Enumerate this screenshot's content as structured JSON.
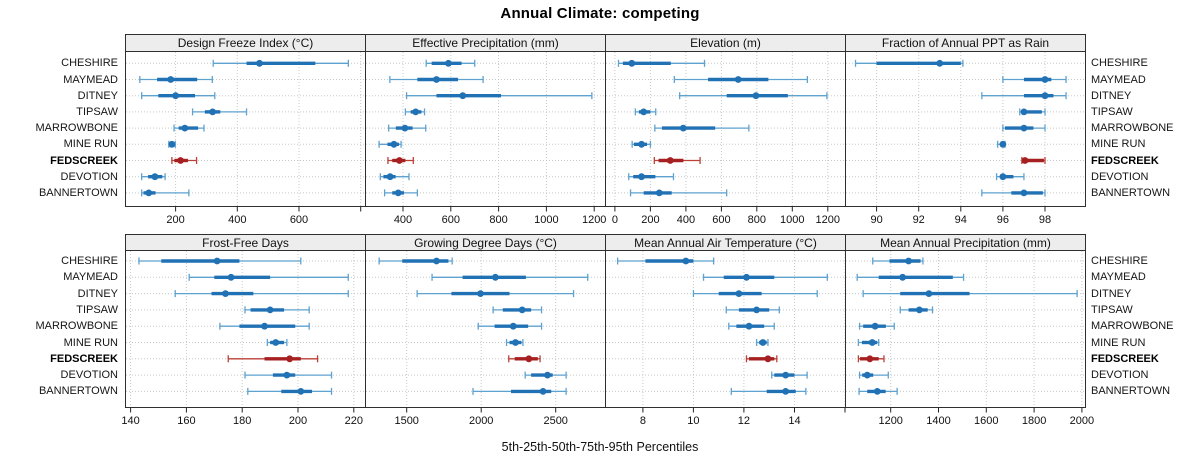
{
  "chart_data": {
    "type": "dotplot-percentiles",
    "title": "Annual Climate: competing",
    "caption": "5th-25th-50th-75th-95th Percentiles",
    "percentile_labels": [
      "5th",
      "25th",
      "50th",
      "75th",
      "95th"
    ],
    "legend_position": "none",
    "grid": "dotted",
    "sites": [
      "CHESHIRE",
      "MAYMEAD",
      "DITNEY",
      "TIPSAW",
      "MARROWBONE",
      "MINE RUN",
      "FEDSCREEK",
      "DEVOTION",
      "BANNERTOWN"
    ],
    "highlight_site": "FEDSCREEK",
    "colors": {
      "main": "#2171B5",
      "whisker": "#5EA2D0",
      "highlight_main": "#A62021",
      "highlight_whisker": "#BB4137",
      "grid": "#C8C8C8",
      "border": "#2F2F2F",
      "header_bg": "#EDEDED",
      "tick": "#222222"
    },
    "panels": [
      {
        "title": "Design Freeze Index (°C)",
        "row": 0,
        "col": 0,
        "xlim": [
          36,
          814
        ],
        "ticks": [
          200,
          400,
          600
        ],
        "unlabeled_ticks": [
          800
        ],
        "series": {
          "CHESHIRE": [
            322,
            430,
            472,
            653,
            760
          ],
          "MAYMEAD": [
            84,
            140,
            184,
            270,
            319
          ],
          "DITNEY": [
            90,
            144,
            200,
            263,
            327
          ],
          "TIPSAW": [
            255,
            295,
            320,
            345,
            430
          ],
          "MARROWBONE": [
            195,
            210,
            230,
            273,
            292
          ],
          "MINE RUN": [
            178,
            183,
            188,
            194,
            199
          ],
          "FEDSCREEK": [
            188,
            196,
            216,
            240,
            268
          ],
          "DEVOTION": [
            90,
            111,
            133,
            157,
            166
          ],
          "BANNERTOWN": [
            90,
            96,
            113,
            135,
            243
          ]
        }
      },
      {
        "title": "Effective Precipitation (mm)",
        "row": 0,
        "col": 1,
        "xlim": [
          241,
          1245
        ],
        "ticks": [
          400,
          600,
          800,
          1000,
          1200
        ],
        "unlabeled_ticks": [],
        "series": {
          "CHESHIRE": [
            497,
            520,
            590,
            645,
            700
          ],
          "MAYMEAD": [
            345,
            460,
            540,
            630,
            735
          ],
          "DITNEY": [
            415,
            540,
            650,
            810,
            1190
          ],
          "TIPSAW": [
            410,
            432,
            453,
            477,
            490
          ],
          "MARROWBONE": [
            340,
            370,
            408,
            440,
            495
          ],
          "MINE RUN": [
            300,
            335,
            362,
            383,
            392
          ],
          "FEDSCREEK": [
            337,
            355,
            385,
            410,
            443
          ],
          "DEVOTION": [
            305,
            318,
            346,
            369,
            425
          ],
          "BANNERTOWN": [
            323,
            355,
            380,
            404,
            460
          ]
        }
      },
      {
        "title": "Elevation (m)",
        "row": 0,
        "col": 2,
        "xlim": [
          -56,
          1297
        ],
        "ticks": [
          0,
          200,
          400,
          600,
          800,
          1000,
          1200
        ],
        "unlabeled_ticks": [],
        "series": {
          "CHESHIRE": [
            20,
            45,
            95,
            315,
            505
          ],
          "MAYMEAD": [
            335,
            525,
            695,
            865,
            1085
          ],
          "DITNEY": [
            365,
            630,
            795,
            975,
            1195
          ],
          "TIPSAW": [
            115,
            135,
            162,
            200,
            230
          ],
          "MARROWBONE": [
            225,
            265,
            385,
            565,
            755
          ],
          "MINE RUN": [
            97,
            107,
            150,
            181,
            200
          ],
          "FEDSCREEK": [
            222,
            246,
            312,
            386,
            480
          ],
          "DEVOTION": [
            78,
            103,
            150,
            228,
            330
          ],
          "BANNERTOWN": [
            88,
            162,
            250,
            320,
            630
          ]
        }
      },
      {
        "title": "Fraction of Annual PPT as Rain",
        "row": 0,
        "col": 3,
        "xlim": [
          88.5,
          99.9
        ],
        "ticks": [
          90,
          92,
          94,
          96,
          98
        ],
        "unlabeled_ticks": [],
        "series": {
          "CHESHIRE": [
            89,
            90,
            93,
            94,
            94.1
          ],
          "MAYMEAD": [
            96,
            97,
            98,
            98.3,
            99
          ],
          "DITNEY": [
            95,
            97,
            98,
            98.4,
            99
          ],
          "TIPSAW": [
            96.8,
            96.9,
            97,
            97.85,
            98
          ],
          "MARROWBONE": [
            96,
            96.1,
            97,
            97.45,
            98
          ],
          "MINE RUN": [
            95.75,
            95.9,
            96,
            96.05,
            96.1
          ],
          "FEDSCREEK": [
            96.9,
            97,
            97.05,
            97.95,
            98
          ],
          "DEVOTION": [
            95.7,
            95.9,
            96,
            96.5,
            97
          ],
          "BANNERTOWN": [
            95,
            96.4,
            97,
            97.9,
            98
          ]
        }
      },
      {
        "title": "Frost-Free Days",
        "row": 1,
        "col": 0,
        "xlim": [
          138,
          224
        ],
        "ticks": [
          140,
          160,
          180,
          200,
          220
        ],
        "unlabeled_ticks": [],
        "series": {
          "CHESHIRE": [
            143,
            151,
            171,
            179,
            201
          ],
          "MAYMEAD": [
            161,
            170,
            176,
            190,
            218
          ],
          "DITNEY": [
            156,
            169,
            174,
            184,
            218
          ],
          "TIPSAW": [
            181,
            183,
            190,
            195,
            204
          ],
          "MARROWBONE": [
            172,
            179,
            188,
            199,
            204
          ],
          "MINE RUN": [
            189,
            190,
            192,
            195,
            196
          ],
          "FEDSCREEK": [
            175,
            188,
            197,
            201,
            207
          ],
          "DEVOTION": [
            181,
            191,
            196,
            199,
            212
          ],
          "BANNERTOWN": [
            182,
            194,
            201,
            205,
            212
          ]
        }
      },
      {
        "title": "Growing Degree Days (°C)",
        "row": 1,
        "col": 1,
        "xlim": [
          1220,
          2831
        ],
        "ticks": [
          1500,
          2000,
          2500
        ],
        "unlabeled_ticks": [],
        "series": {
          "CHESHIRE": [
            1315,
            1470,
            1700,
            1780,
            1805
          ],
          "MAYMEAD": [
            1670,
            1875,
            2095,
            2300,
            2715
          ],
          "DITNEY": [
            1570,
            1800,
            1995,
            2190,
            2620
          ],
          "TIPSAW": [
            2080,
            2145,
            2275,
            2335,
            2405
          ],
          "MARROWBONE": [
            1980,
            2090,
            2215,
            2315,
            2405
          ],
          "MINE RUN": [
            2170,
            2190,
            2230,
            2270,
            2280
          ],
          "FEDSCREEK": [
            2185,
            2225,
            2320,
            2380,
            2395
          ],
          "DEVOTION": [
            2295,
            2335,
            2445,
            2480,
            2570
          ],
          "BANNERTOWN": [
            1945,
            2200,
            2415,
            2470,
            2570
          ]
        }
      },
      {
        "title": "Mean Annual Air Temperature (°C)",
        "row": 1,
        "col": 2,
        "xlim": [
          6.5,
          16.0
        ],
        "ticks": [
          8,
          10,
          12,
          14
        ],
        "unlabeled_ticks": [
          16
        ],
        "series": {
          "CHESHIRE": [
            7.0,
            8.1,
            9.7,
            10.0,
            10.8
          ],
          "MAYMEAD": [
            10.4,
            11.2,
            12.1,
            13.2,
            15.3
          ],
          "DITNEY": [
            10.0,
            11.0,
            11.8,
            12.7,
            14.9
          ],
          "TIPSAW": [
            11.3,
            11.8,
            12.5,
            13.0,
            13.4
          ],
          "MARROWBONE": [
            11.4,
            11.7,
            12.2,
            12.8,
            13.2
          ],
          "MINE RUN": [
            12.5,
            12.6,
            12.75,
            12.9,
            12.95
          ],
          "FEDSCREEK": [
            12.1,
            12.2,
            12.95,
            13.2,
            13.3
          ],
          "DEVOTION": [
            13.1,
            13.2,
            13.65,
            14.0,
            14.5
          ],
          "BANNERTOWN": [
            11.5,
            12.9,
            13.65,
            14.05,
            14.45
          ]
        }
      },
      {
        "title": "Mean Annual Precipitation (mm)",
        "row": 1,
        "col": 3,
        "xlim": [
          1009,
          2013
        ],
        "ticks": [
          1200,
          1400,
          1600,
          1800,
          2000
        ],
        "unlabeled_ticks": [],
        "series": {
          "CHESHIRE": [
            1125,
            1195,
            1275,
            1325,
            1335
          ],
          "MAYMEAD": [
            1060,
            1150,
            1250,
            1460,
            1505
          ],
          "DITNEY": [
            1085,
            1240,
            1360,
            1530,
            1980
          ],
          "TIPSAW": [
            1240,
            1275,
            1320,
            1355,
            1375
          ],
          "MARROWBONE": [
            1070,
            1085,
            1135,
            1180,
            1215
          ],
          "MINE RUN": [
            1065,
            1080,
            1123,
            1144,
            1150
          ],
          "FEDSCREEK": [
            1065,
            1072,
            1113,
            1150,
            1172
          ],
          "DEVOTION": [
            1070,
            1081,
            1102,
            1127,
            1190
          ],
          "BANNERTOWN": [
            1068,
            1102,
            1144,
            1179,
            1227
          ]
        }
      }
    ]
  }
}
